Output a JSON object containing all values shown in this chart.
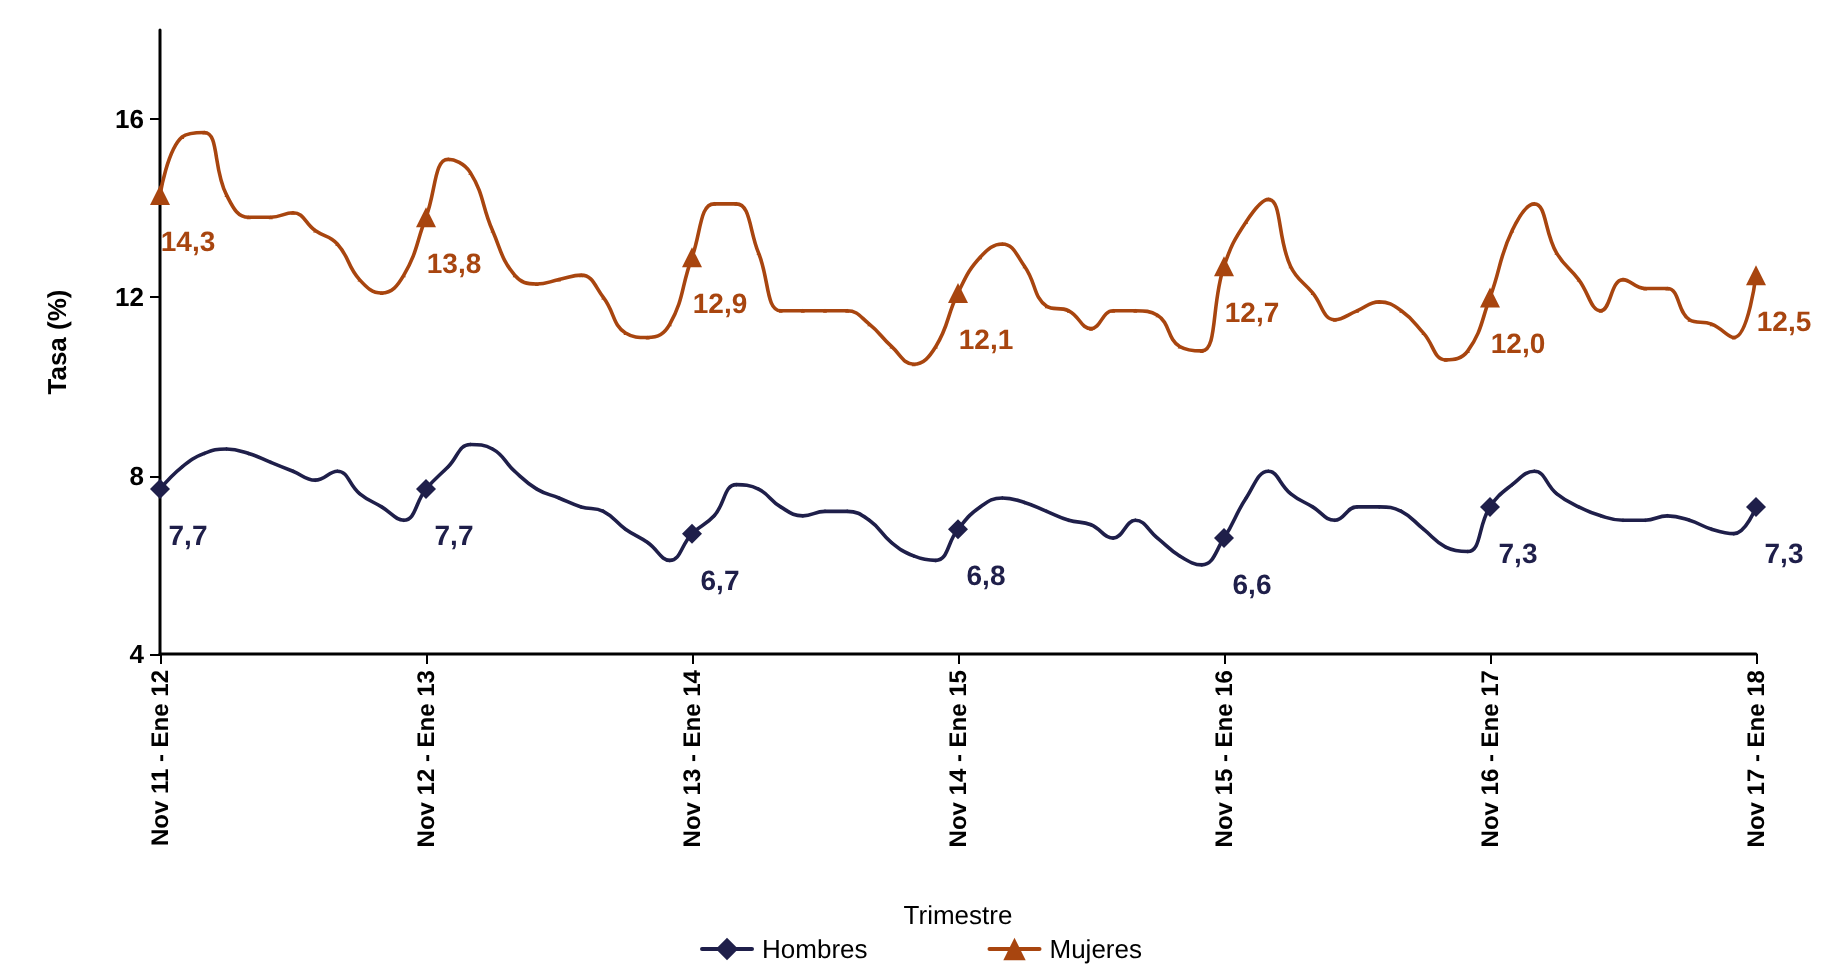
{
  "chart_data": {
    "type": "line",
    "xlabel": "Trimestre",
    "ylabel": "Tasa (%)",
    "categories": [
      "Nov 11 - Ene 12",
      null,
      null,
      null,
      null,
      null,
      null,
      null,
      null,
      null,
      null,
      null,
      "Nov 12 - Ene 13",
      null,
      null,
      null,
      null,
      null,
      null,
      null,
      null,
      null,
      null,
      null,
      "Nov 13 - Ene 14",
      null,
      null,
      null,
      null,
      null,
      null,
      null,
      null,
      null,
      null,
      null,
      "Nov 14 - Ene 15",
      null,
      null,
      null,
      null,
      null,
      null,
      null,
      null,
      null,
      null,
      null,
      "Nov 15 - Ene 16",
      null,
      null,
      null,
      null,
      null,
      null,
      null,
      null,
      null,
      null,
      null,
      "Nov 16 - Ene 17",
      null,
      null,
      null,
      null,
      null,
      null,
      null,
      null,
      null,
      null,
      null,
      "Nov 17 - Ene 18"
    ],
    "series": [
      {
        "name": "Hombres",
        "color": "#1f1f4a",
        "marker": "diamond",
        "values": [
          7.7,
          8.2,
          8.5,
          8.6,
          8.5,
          8.3,
          8.1,
          7.9,
          8.1,
          7.6,
          7.3,
          7.0,
          7.7,
          8.2,
          8.7,
          8.6,
          8.1,
          7.7,
          7.5,
          7.3,
          7.2,
          6.8,
          6.5,
          6.1,
          6.7,
          7.1,
          7.8,
          7.7,
          7.3,
          7.1,
          7.2,
          7.2,
          7.0,
          6.5,
          6.2,
          6.1,
          6.8,
          7.3,
          7.5,
          7.4,
          7.2,
          7.0,
          6.9,
          6.6,
          7.0,
          6.6,
          6.2,
          6.0,
          6.6,
          7.5,
          8.1,
          7.6,
          7.3,
          7.0,
          7.3,
          7.3,
          7.2,
          6.8,
          6.4,
          6.3,
          7.3,
          7.8,
          8.1,
          7.6,
          7.3,
          7.1,
          7.0,
          7.0,
          7.1,
          7.0,
          6.8,
          6.7,
          7.3
        ],
        "value_labels": [
          "7,7",
          null,
          null,
          null,
          null,
          null,
          null,
          null,
          null,
          null,
          null,
          null,
          "7,7",
          null,
          null,
          null,
          null,
          null,
          null,
          null,
          null,
          null,
          null,
          null,
          "6,7",
          null,
          null,
          null,
          null,
          null,
          null,
          null,
          null,
          null,
          null,
          null,
          "6,8",
          null,
          null,
          null,
          null,
          null,
          null,
          null,
          null,
          null,
          null,
          null,
          "6,6",
          null,
          null,
          null,
          null,
          null,
          null,
          null,
          null,
          null,
          null,
          null,
          "7,3",
          null,
          null,
          null,
          null,
          null,
          null,
          null,
          null,
          null,
          null,
          null,
          "7,3"
        ]
      },
      {
        "name": "Mujeres",
        "color": "#a8450f",
        "marker": "triangle",
        "values": [
          14.3,
          15.6,
          15.7,
          14.3,
          13.8,
          13.8,
          13.9,
          13.5,
          13.2,
          12.4,
          12.1,
          12.5,
          13.8,
          15.1,
          14.8,
          13.5,
          12.5,
          12.3,
          12.4,
          12.5,
          12.0,
          11.2,
          11.1,
          11.4,
          12.9,
          14.1,
          14.1,
          13.0,
          11.7,
          11.7,
          11.7,
          11.7,
          11.4,
          10.9,
          10.5,
          10.9,
          12.1,
          12.9,
          13.2,
          12.7,
          11.8,
          11.7,
          11.3,
          11.7,
          11.7,
          11.6,
          10.9,
          10.8,
          12.7,
          13.7,
          14.2,
          12.7,
          12.1,
          11.5,
          11.7,
          11.9,
          11.7,
          11.2,
          10.6,
          10.8,
          12.0,
          13.5,
          14.1,
          13.0,
          12.4,
          11.7,
          12.4,
          12.2,
          12.2,
          11.5,
          11.4,
          11.1,
          12.5
        ],
        "value_labels": [
          "14,3",
          null,
          null,
          null,
          null,
          null,
          null,
          null,
          null,
          null,
          null,
          null,
          "13,8",
          null,
          null,
          null,
          null,
          null,
          null,
          null,
          null,
          null,
          null,
          null,
          "12,9",
          null,
          null,
          null,
          null,
          null,
          null,
          null,
          null,
          null,
          null,
          null,
          "12,1",
          null,
          null,
          null,
          null,
          null,
          null,
          null,
          null,
          null,
          null,
          null,
          "12,7",
          null,
          null,
          null,
          null,
          null,
          null,
          null,
          null,
          null,
          null,
          null,
          "12,0",
          null,
          null,
          null,
          null,
          null,
          null,
          null,
          null,
          null,
          null,
          null,
          "12,5"
        ]
      }
    ],
    "ylim": [
      4,
      18
    ],
    "yticks": [
      4,
      8,
      12,
      16
    ],
    "grid": false,
    "legend": "bottom"
  }
}
